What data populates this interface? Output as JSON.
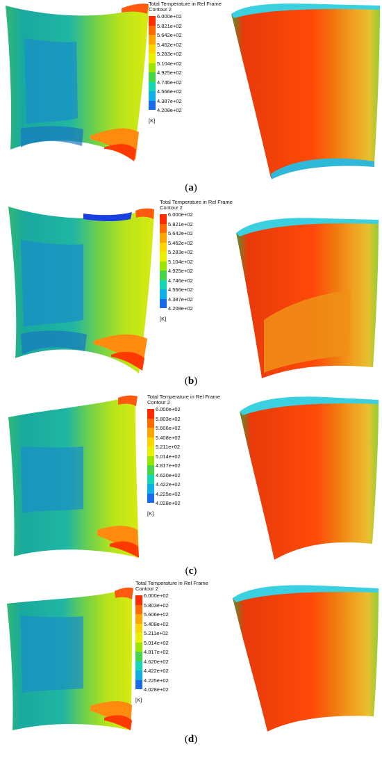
{
  "legend_title": "Total Temperature in Rel Frame",
  "legend_subtitle": "Contour 2",
  "unit": "[K]",
  "colors": [
    "#ff2a00",
    "#ff6a00",
    "#ffa500",
    "#ffd500",
    "#e8f000",
    "#9ae600",
    "#45d64a",
    "#15d7b5",
    "#10b0e6",
    "#1a6aeb",
    "#1f2ae6"
  ],
  "panels": [
    {
      "label": "a",
      "ticks": [
        "6.000e+02",
        "5.821e+02",
        "5.642e+02",
        "5.462e+02",
        "5.283e+02",
        "5.104e+02",
        "4.925e+02",
        "4.746e+02",
        "4.566e+02",
        "4.387e+02",
        "4.208e+02"
      ]
    },
    {
      "label": "b",
      "ticks": [
        "6.000e+02",
        "5.821e+02",
        "5.642e+02",
        "5.462e+02",
        "5.283e+02",
        "5.104e+02",
        "4.925e+02",
        "4.746e+02",
        "4.566e+02",
        "4.387e+02",
        "4.208e+02"
      ]
    },
    {
      "label": "c",
      "ticks": [
        "6.000e+02",
        "5.803e+02",
        "5.606e+02",
        "5.408e+02",
        "5.211e+02",
        "5.014e+02",
        "4.817e+02",
        "4.620e+02",
        "4.422e+02",
        "4.225e+02",
        "4.028e+02"
      ]
    },
    {
      "label": "d",
      "ticks": [
        "6.000e+02",
        "5.803e+02",
        "5.606e+02",
        "5.408e+02",
        "5.211e+02",
        "5.014e+02",
        "4.817e+02",
        "4.620e+02",
        "4.422e+02",
        "4.225e+02",
        "4.028e+02"
      ]
    }
  ]
}
